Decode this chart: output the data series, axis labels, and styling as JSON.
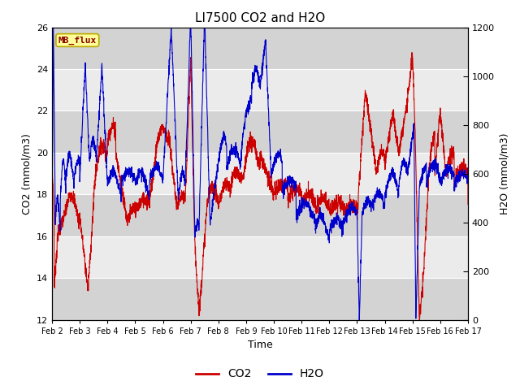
{
  "title": "LI7500 CO2 and H2O",
  "xlabel": "Time",
  "ylabel_left": "CO2 (mmol/m3)",
  "ylabel_right": "H2O (mmol/m3)",
  "ylim_left": [
    12,
    26
  ],
  "ylim_right": [
    0,
    1200
  ],
  "yticks_left": [
    12,
    14,
    16,
    18,
    20,
    22,
    24,
    26
  ],
  "yticks_right": [
    0,
    200,
    400,
    600,
    800,
    1000,
    1200
  ],
  "background_color": "#ffffff",
  "plot_bg_color": "#e0e0e0",
  "band_light": "#d3d3d3",
  "band_white": "#ebebeb",
  "co2_color": "#cc0000",
  "h2o_color": "#0000cc",
  "legend_co2": "CO2",
  "legend_h2o": "H2O",
  "annotation_text": "MB_flux",
  "annotation_bg": "#ffff99",
  "annotation_border": "#bbaa00",
  "xtick_labels": [
    "Feb 2",
    "Feb 3",
    "Feb 4",
    "Feb 5",
    "Feb 6",
    "Feb 7",
    "Feb 8",
    "Feb 9",
    "Feb 10",
    "Feb 11",
    "Feb 12",
    "Feb 13",
    "Feb 14",
    "Feb 15",
    "Feb 16",
    "Feb 17"
  ],
  "xtick_positions": [
    0,
    1,
    2,
    3,
    4,
    5,
    6,
    7,
    8,
    9,
    10,
    11,
    12,
    13,
    14,
    15
  ]
}
